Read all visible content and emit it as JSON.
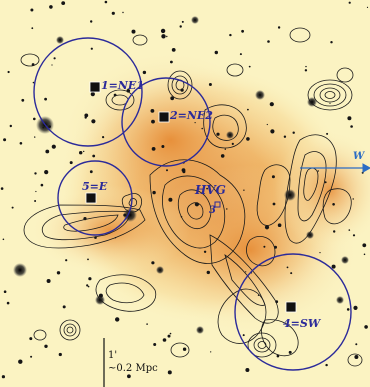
{
  "image": {
    "description_type": "astronomical optical image with X-ray/radio contour overlay",
    "colors": {
      "background": "#fbf3c2",
      "diffuse_emission": "#e58a2c",
      "circles": "#2b2a9a",
      "contours": "#1a1a1a",
      "stars": "#111111"
    }
  },
  "regions": [
    {
      "id": "1",
      "label": "1=NE1"
    },
    {
      "id": "2",
      "label": "2=NE2"
    },
    {
      "id": "5",
      "label": "5=E"
    },
    {
      "id": "4",
      "label": "4=SW"
    }
  ],
  "annotations": {
    "hvg": "HVG",
    "hvg_index": "3",
    "direction": "W"
  },
  "scale_bar": {
    "line1": "1'",
    "line2": "~0.2 Mpc"
  }
}
